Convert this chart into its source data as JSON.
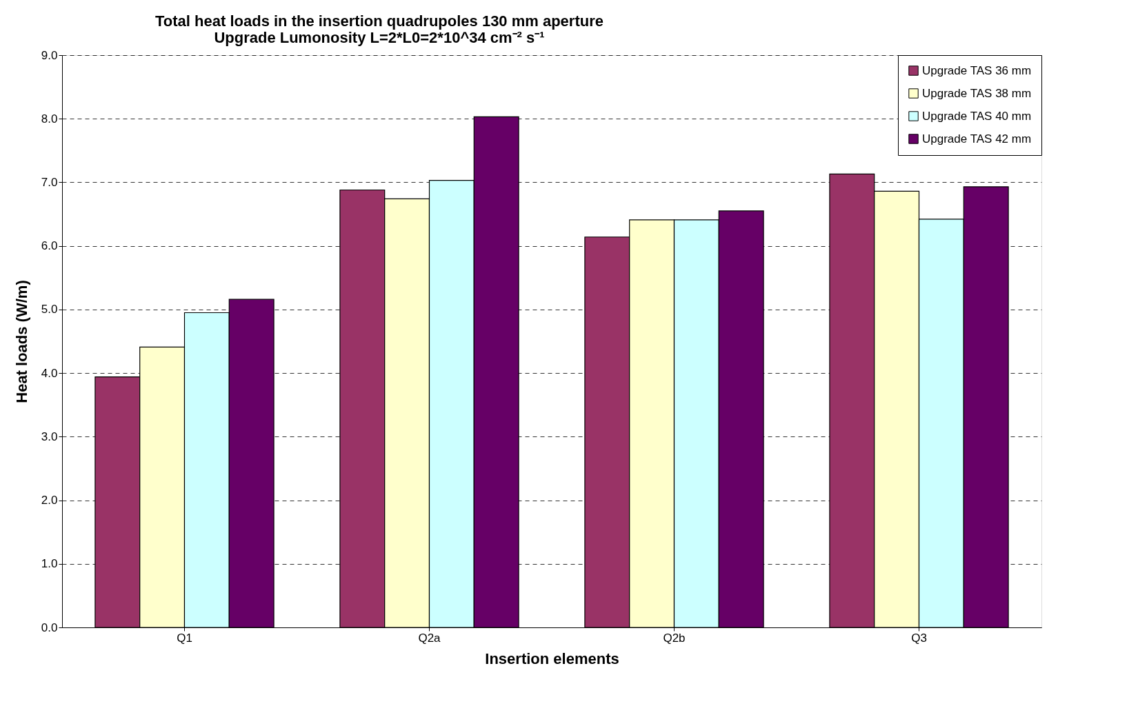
{
  "chart_data": {
    "type": "bar",
    "title": [
      "Total heat loads in the insertion quadrupoles 130 mm aperture",
      "Upgrade Lumonosity L=2*L0=2*10^34 cm⁻² s⁻¹"
    ],
    "xlabel": "Insertion elements",
    "ylabel": "Heat loads (W/m)",
    "categories": [
      "Q1",
      "Q2a",
      "Q2b",
      "Q3"
    ],
    "series": [
      {
        "name": "Upgrade TAS 36 mm",
        "color": "#993366",
        "values": [
          3.94,
          6.88,
          6.14,
          7.13
        ]
      },
      {
        "name": "Upgrade TAS 38 mm",
        "color": "#ffffcc",
        "values": [
          4.41,
          6.74,
          6.41,
          6.86
        ]
      },
      {
        "name": "Upgrade TAS 40 mm",
        "color": "#ccffff",
        "values": [
          4.95,
          7.03,
          6.41,
          6.42
        ]
      },
      {
        "name": "Upgrade TAS 42 mm",
        "color": "#660066",
        "values": [
          5.16,
          8.03,
          6.55,
          6.93
        ]
      }
    ],
    "ylim": [
      0,
      9
    ],
    "yticks": [
      {
        "value": 0,
        "label": "0.0"
      },
      {
        "value": 1,
        "label": "1.0"
      },
      {
        "value": 2,
        "label": "2.0"
      },
      {
        "value": 3,
        "label": "3.0"
      },
      {
        "value": 4,
        "label": "4.0"
      },
      {
        "value": 5,
        "label": "5.0"
      },
      {
        "value": 6,
        "label": "6.0"
      },
      {
        "value": 7,
        "label": "7.0"
      },
      {
        "value": 8,
        "label": "8.0"
      },
      {
        "value": 9,
        "label": "9.0"
      }
    ],
    "grid": "y",
    "legend": "top right"
  }
}
